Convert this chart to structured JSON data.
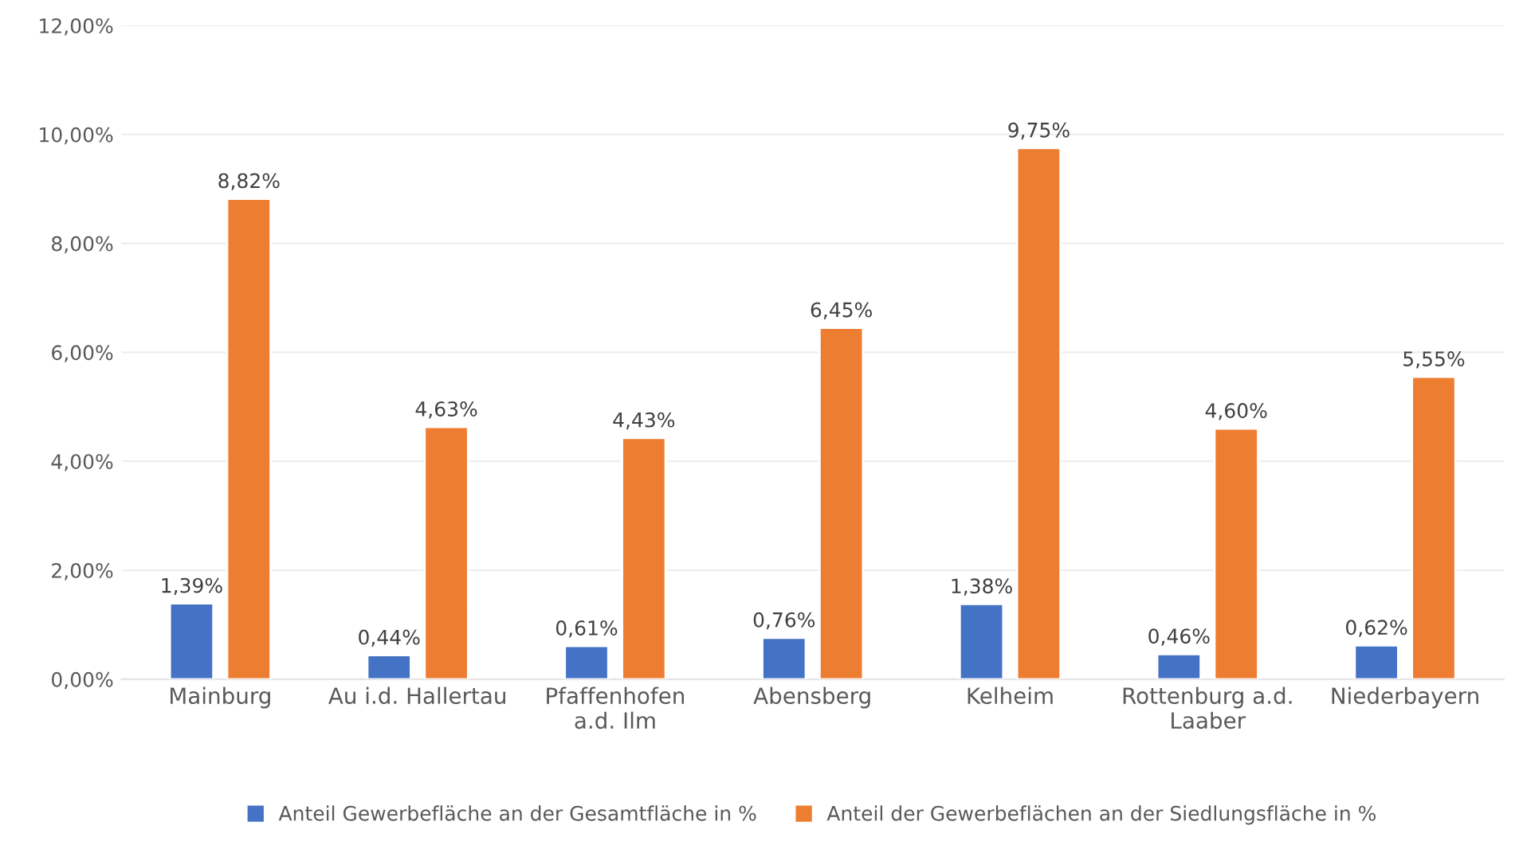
{
  "chart_data": {
    "type": "bar",
    "categories": [
      "Mainburg",
      "Au i.d. Hallertau",
      "Pfaffenhofen\na.d. Ilm",
      "Abensberg",
      "Kelheim",
      "Rottenburg a.d.\nLaaber",
      "Niederbayern"
    ],
    "series": [
      {
        "name": "Anteil Gewerbefläche an der Gesamtfläche in %",
        "color": "#4472c4",
        "values": [
          1.39,
          0.44,
          0.61,
          0.76,
          1.38,
          0.46,
          0.62
        ],
        "value_labels": [
          "1,39%",
          "0,44%",
          "0,61%",
          "0,76%",
          "1,38%",
          "0,46%",
          "0,62%"
        ]
      },
      {
        "name": "Anteil der Gewerbeflächen an der Siedlungsfläche in %",
        "color": "#ed7d31",
        "values": [
          8.82,
          4.63,
          4.43,
          6.45,
          9.75,
          4.6,
          5.55
        ],
        "value_labels": [
          "8,82%",
          "4,63%",
          "4,43%",
          "6,45%",
          "9,75%",
          "4,60%",
          "5,55%"
        ]
      }
    ],
    "ylim": [
      0,
      12
    ],
    "yticks": [
      {
        "value": 0,
        "label": "0,00%"
      },
      {
        "value": 2,
        "label": "2,00%"
      },
      {
        "value": 4,
        "label": "4,00%"
      },
      {
        "value": 6,
        "label": "6,00%"
      },
      {
        "value": 8,
        "label": "8,00%"
      },
      {
        "value": 10,
        "label": "10,00%"
      },
      {
        "value": 12,
        "label": "12,00%"
      }
    ],
    "grid": "y",
    "legend": "bottom"
  }
}
